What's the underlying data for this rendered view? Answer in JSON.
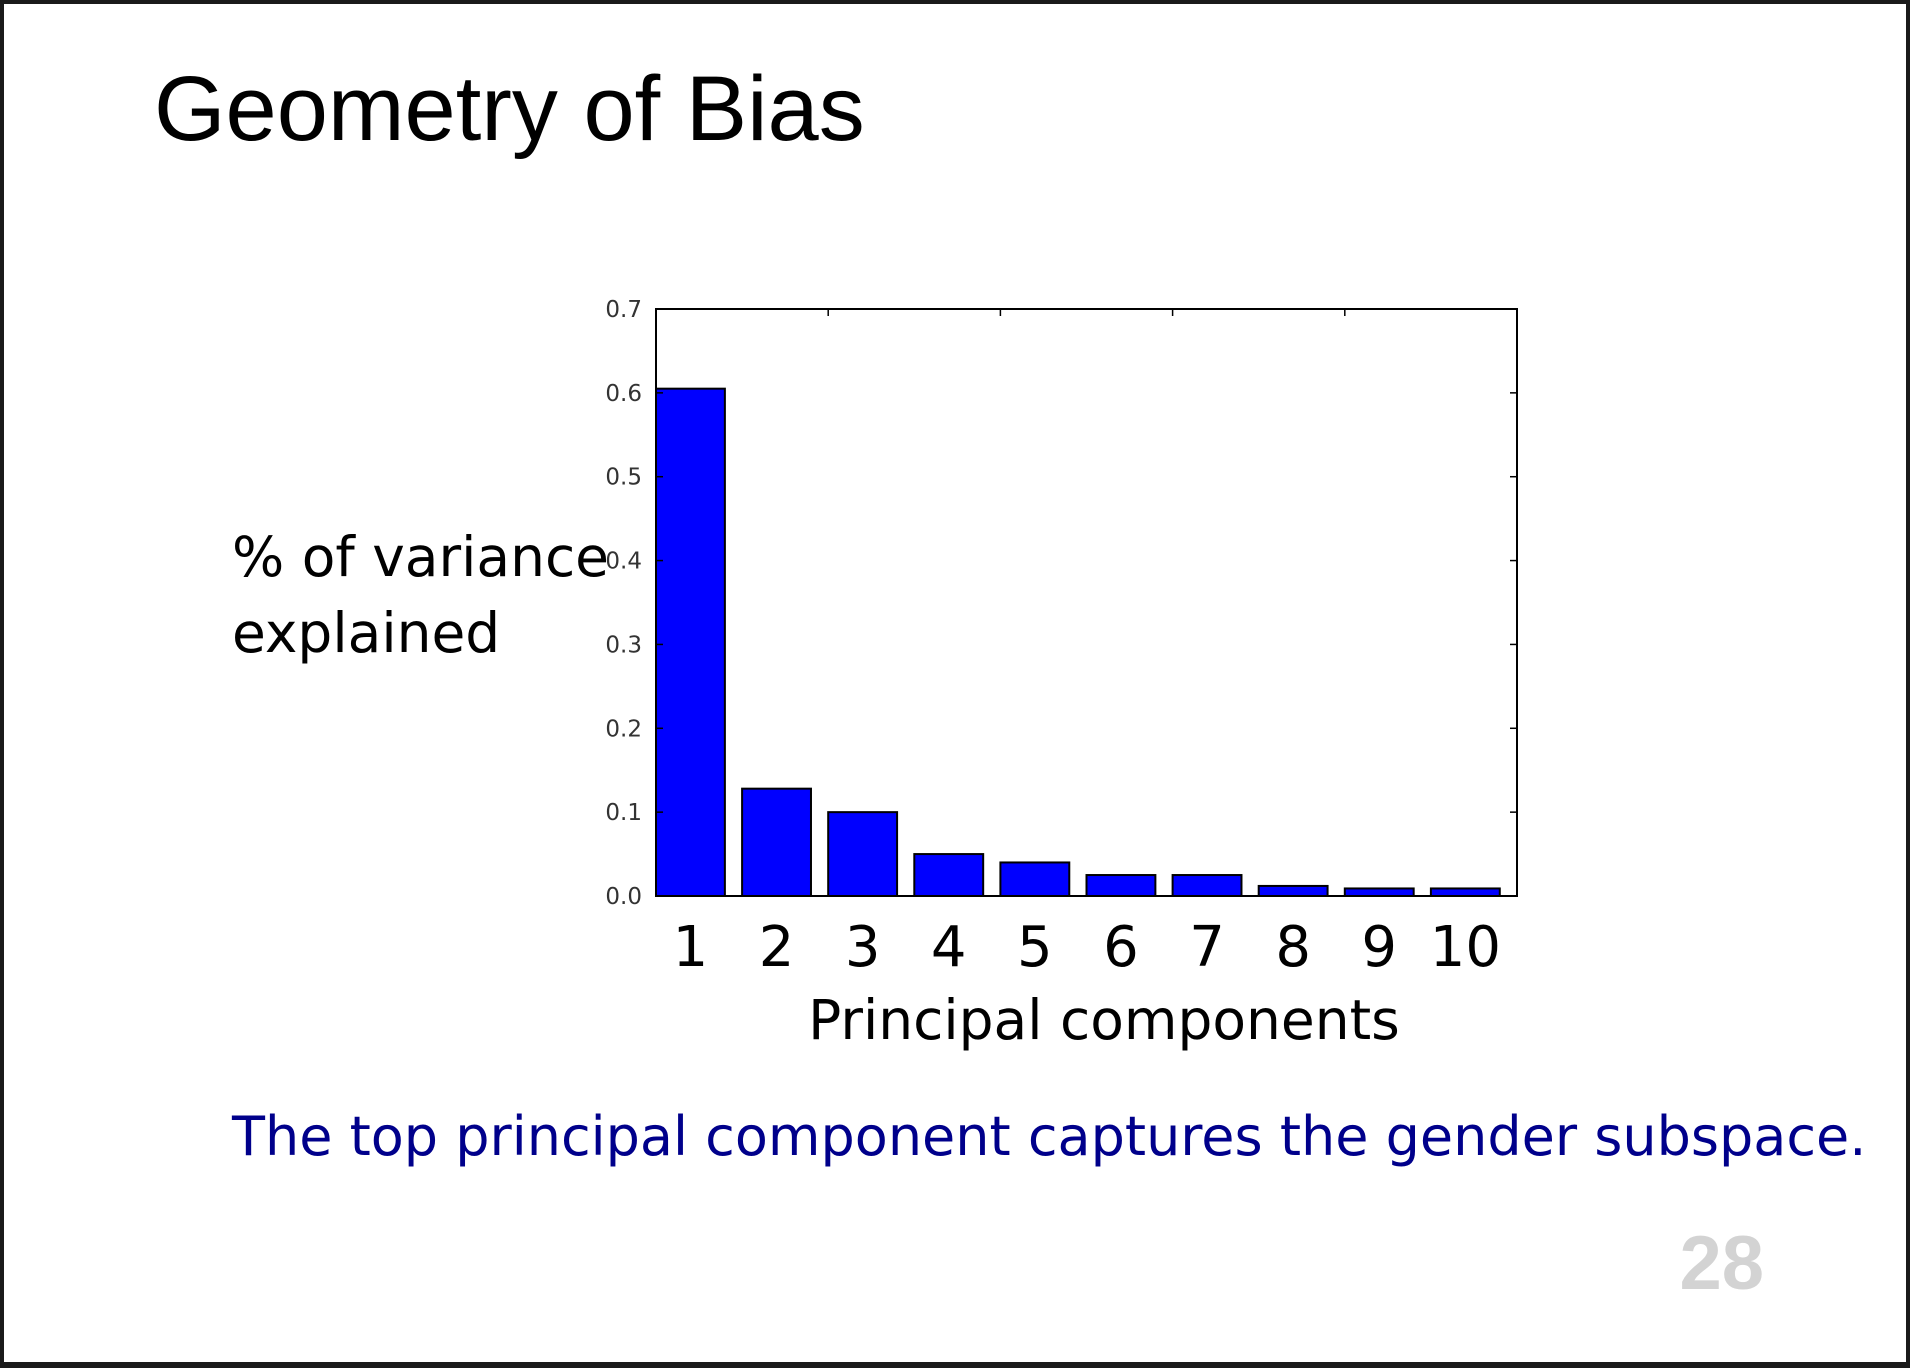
{
  "slide": {
    "title": "Geometry of Bias",
    "caption": "The top principal component captures the gender subspace.",
    "page_number": "28"
  },
  "colors": {
    "bar_fill": "#0000ff",
    "caption_text": "#00008b",
    "page_number": "#d3d3d3"
  },
  "chart_data": {
    "type": "bar",
    "categories": [
      "1",
      "2",
      "3",
      "4",
      "5",
      "6",
      "7",
      "8",
      "9",
      "10"
    ],
    "values": [
      0.605,
      0.128,
      0.1,
      0.05,
      0.04,
      0.025,
      0.025,
      0.012,
      0.009,
      0.009
    ],
    "ylabel_lines": [
      "% of variance",
      "explained"
    ],
    "xlabel": "Principal components",
    "ylim": [
      0,
      0.7
    ],
    "yticks": [
      "0.0",
      "0.1",
      "0.2",
      "0.3",
      "0.4",
      "0.5",
      "0.6",
      "0.7"
    ],
    "grid": false,
    "legend": "none"
  }
}
